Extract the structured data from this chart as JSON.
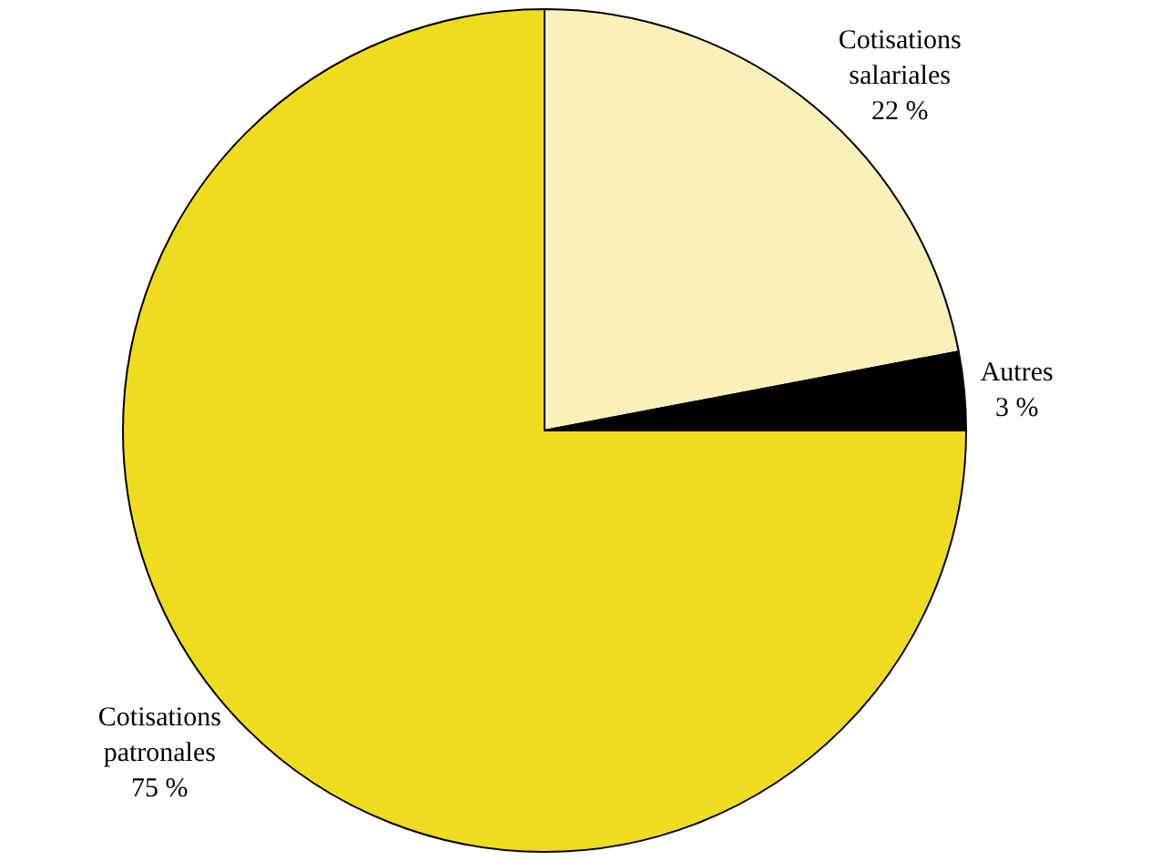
{
  "chart_data": {
    "type": "pie",
    "categories": [
      "Cotisations salariales",
      "Autres",
      "Cotisations patronales"
    ],
    "values": [
      22,
      3,
      75
    ],
    "value_labels": [
      "22 %",
      "3 %",
      "75 %"
    ],
    "colors": [
      "#faf0b9",
      "#000000",
      "#f0dc1e"
    ],
    "legend": false
  }
}
